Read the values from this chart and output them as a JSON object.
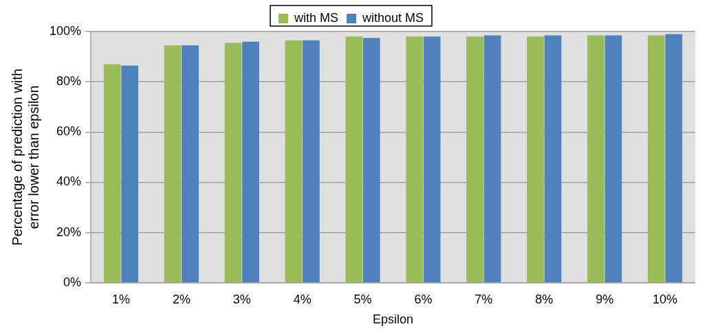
{
  "chart_data": {
    "type": "bar",
    "xlabel": "Epsilon",
    "ylabel": "Percentage of prediction with error lower than epsilon",
    "categories": [
      "1%",
      "2%",
      "3%",
      "4%",
      "5%",
      "6%",
      "7%",
      "8%",
      "9%",
      "10%"
    ],
    "series": [
      {
        "name": "with MS",
        "color": "#9bbb59",
        "values": [
          87,
          94.5,
          95.5,
          96.5,
          98,
          98,
          98,
          98,
          98.5,
          98.5
        ]
      },
      {
        "name": "without MS",
        "color": "#4f81bd",
        "values": [
          86.5,
          94.5,
          96,
          96.5,
          97.5,
          98,
          98.5,
          98.5,
          98.5,
          99
        ]
      }
    ],
    "ylim": [
      0,
      100
    ],
    "yticks": [
      {
        "value": 0,
        "label": "0%"
      },
      {
        "value": 20,
        "label": "20%"
      },
      {
        "value": 40,
        "label": "40%"
      },
      {
        "value": 60,
        "label": "60%"
      },
      {
        "value": 80,
        "label": "80%"
      },
      {
        "value": 100,
        "label": "100%"
      }
    ],
    "grid": "y",
    "legend": "top"
  }
}
